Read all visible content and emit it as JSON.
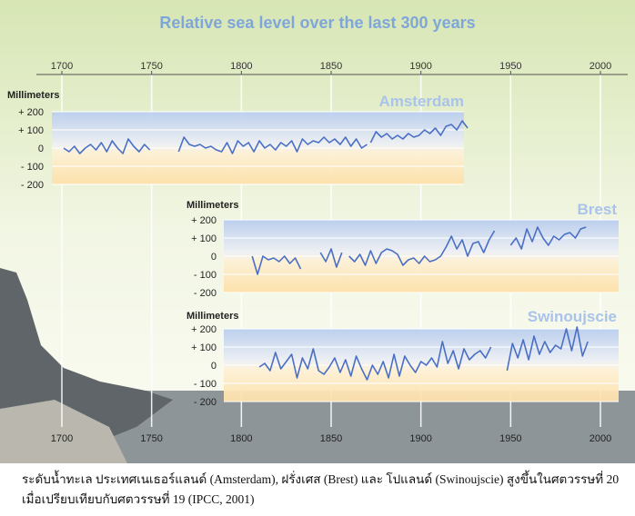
{
  "chart_data": {
    "type": "line",
    "title": "Relative sea level over the last 300 years",
    "x_ticks": [
      "1700",
      "1750",
      "1800",
      "1850",
      "1900",
      "1950",
      "2000"
    ],
    "xlim": [
      1700,
      2000
    ],
    "grid": true,
    "colors": {
      "line": "#4a6fc4",
      "title": "#7fa6d9",
      "panel_top": "#b9cdee",
      "panel_bottom": "#fde0a8"
    },
    "panels": [
      {
        "name": "Amsterdam",
        "ylabel": "Millimeters",
        "y_ticks": [
          "+ 200",
          "+ 100",
          "0",
          "- 100",
          "- 200"
        ],
        "ylim": [
          -200,
          200
        ],
        "xrange": [
          1695,
          1925
        ],
        "segments": [
          {
            "start": 1701,
            "step": 3,
            "values": [
              0,
              -20,
              10,
              -30,
              0,
              20,
              -10,
              30,
              -20,
              40,
              0,
              -30,
              50,
              10,
              -20,
              20,
              -10
            ]
          },
          {
            "start": 1765,
            "step": 3,
            "values": [
              -20,
              60,
              20,
              10,
              20,
              0,
              10,
              -10,
              -20,
              30,
              -30,
              40,
              10,
              30,
              -20,
              40,
              0,
              20,
              -10,
              30,
              10,
              40,
              -20,
              50,
              20,
              40,
              30,
              60,
              30,
              50,
              20,
              60,
              10,
              50,
              0,
              20
            ]
          },
          {
            "start": 1872,
            "step": 3,
            "values": [
              30,
              90,
              60,
              80,
              50,
              70,
              50,
              80,
              60,
              70,
              100,
              80,
              110,
              70,
              120,
              130,
              100,
              150,
              110
            ]
          }
        ]
      },
      {
        "name": "Brest",
        "ylabel": "Millimeters",
        "y_ticks": [
          "+ 200",
          "+ 100",
          "0",
          "- 100",
          "- 200"
        ],
        "ylim": [
          -200,
          200
        ],
        "xrange": [
          1790,
          2010
        ],
        "segments": [
          {
            "start": 1806,
            "step": 3,
            "values": [
              0,
              -100,
              0,
              -20,
              -10,
              -30,
              0,
              -40,
              -10,
              -70
            ]
          },
          {
            "start": 1844,
            "step": 3,
            "values": [
              20,
              -30,
              40,
              -60,
              20
            ]
          },
          {
            "start": 1860,
            "step": 3,
            "values": [
              0,
              -30,
              10,
              -50,
              30,
              -40,
              20,
              40,
              30,
              10,
              -50,
              -20,
              -10,
              -40,
              0,
              -30,
              -20,
              0,
              50,
              110,
              40,
              90,
              0,
              70,
              80,
              20,
              90,
              140
            ]
          },
          {
            "start": 1950,
            "step": 3,
            "values": [
              60,
              100,
              40,
              150,
              80,
              160,
              100,
              60,
              110,
              90,
              120,
              130,
              100,
              150,
              160
            ]
          }
        ]
      },
      {
        "name": "Swinoujscie",
        "ylabel": "Millimeters",
        "y_ticks": [
          "+ 200",
          "+ 100",
          "0",
          "- 100",
          "- 200"
        ],
        "ylim": [
          -200,
          200
        ],
        "xrange": [
          1790,
          2010
        ],
        "segments": [
          {
            "start": 1810,
            "step": 3,
            "values": [
              -10,
              10,
              -30,
              70,
              -20,
              20,
              60,
              -70,
              40,
              -20,
              90,
              -30,
              -50,
              -10,
              40,
              -40,
              30,
              -60,
              50,
              -20,
              -80,
              0,
              -50,
              20,
              -70,
              60,
              -60,
              50,
              0,
              -40,
              20,
              0,
              40,
              -10,
              130,
              10,
              80,
              -20,
              90,
              30,
              60,
              80,
              40,
              100
            ]
          },
          {
            "start": 1948,
            "step": 3,
            "values": [
              -30,
              120,
              40,
              140,
              30,
              160,
              60,
              130,
              70,
              110,
              90,
              200,
              80,
              210,
              50,
              130
            ]
          }
        ]
      }
    ]
  },
  "caption": {
    "line1": "ระดับน้ำทะเล ประเทศเนเธอร์แลนด์ (Amsterdam), ฝรั่งเศส (Brest) และ โปแลนด์ (Swinoujscie) สูงขึ้นในศตวรรษที่ 20",
    "line2": "เมื่อเปรียบเทียบกับศตวรรษที่ 19  (IPCC, 2001)"
  }
}
